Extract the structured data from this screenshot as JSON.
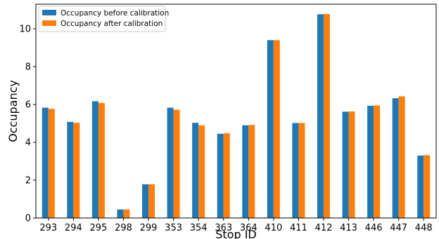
{
  "chart_data": {
    "type": "bar",
    "xlabel": "Stop ID",
    "ylabel": "Occupancy",
    "ylim": [
      0,
      11.3
    ],
    "yticks": [
      0,
      2,
      4,
      6,
      8,
      10
    ],
    "grid": false,
    "legend_position": "top-left",
    "categories": [
      "293",
      "294",
      "295",
      "298",
      "299",
      "353",
      "354",
      "363",
      "364",
      "410",
      "411",
      "412",
      "413",
      "446",
      "447",
      "448"
    ],
    "series": [
      {
        "name": "Occupancy before calibration",
        "color": "#1f77b4",
        "values": [
          5.83,
          5.08,
          6.17,
          0.45,
          1.78,
          5.83,
          5.03,
          4.45,
          4.9,
          9.4,
          5.02,
          10.77,
          5.62,
          5.93,
          6.33,
          3.3
        ]
      },
      {
        "name": "Occupancy after calibration",
        "color": "#ff7f0e",
        "values": [
          5.77,
          5.03,
          6.08,
          0.45,
          1.78,
          5.72,
          4.9,
          4.48,
          4.92,
          9.4,
          5.02,
          10.78,
          5.63,
          5.95,
          6.43,
          3.32
        ]
      }
    ]
  }
}
